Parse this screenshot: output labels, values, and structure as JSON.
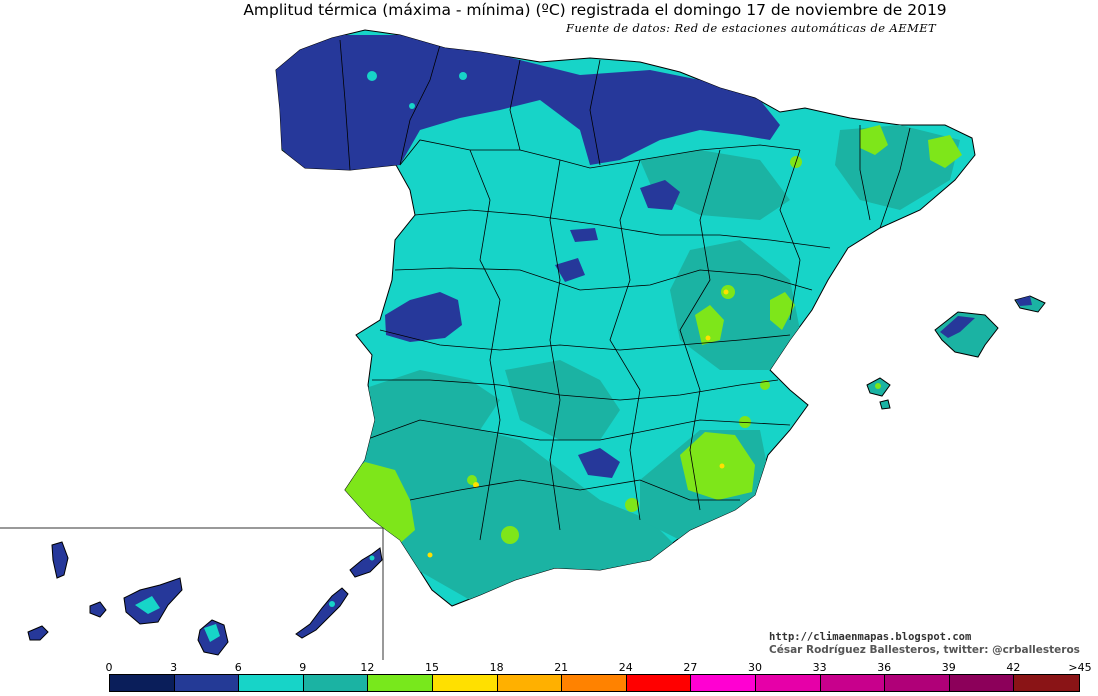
{
  "title": "Amplitud térmica (máxima - mínima) (ºC) registrada el domingo 17 de noviembre de 2019",
  "source": "Fuente de datos: Red de estaciones automáticas de AEMET",
  "credits": {
    "url": "http://climaenmapas.blogspot.com",
    "author": "César Rodríguez Ballesteros, twitter: @crballesteros"
  },
  "legend": {
    "unit": "ºC",
    "ticks": [
      "0",
      "3",
      "6",
      "9",
      "12",
      "15",
      "18",
      "21",
      "24",
      "27",
      "30",
      "33",
      "36",
      "39",
      "42",
      ">45"
    ],
    "classes": [
      {
        "range": "0-3",
        "color": "#0a1e5a"
      },
      {
        "range": "3-6",
        "color": "#243a96"
      },
      {
        "range": "6-9",
        "color": "#17d4c8"
      },
      {
        "range": "9-12",
        "color": "#1bb3a3"
      },
      {
        "range": "12-15",
        "color": "#78e81c"
      },
      {
        "range": "15-18",
        "color": "#ffe000"
      },
      {
        "range": "18-21",
        "color": "#ffb000"
      },
      {
        "range": "21-24",
        "color": "#ff8200"
      },
      {
        "range": "24-27",
        "color": "#ff0000"
      },
      {
        "range": "27-30",
        "color": "#ff00d2"
      },
      {
        "range": "30-33",
        "color": "#e600a8"
      },
      {
        "range": "33-36",
        "color": "#c8008c"
      },
      {
        "range": "36-39",
        "color": "#b00078"
      },
      {
        "range": "39-42",
        "color": "#8c005a"
      },
      {
        "range": ">42",
        "color": "#8a1416"
      }
    ]
  },
  "colors": {
    "land_cyan": "#17d4c8",
    "land_teal": "#1bb3a3",
    "land_blue": "#26389a",
    "land_green": "#7ee61a",
    "land_yellow": "#ffe000",
    "border": "#000000"
  }
}
